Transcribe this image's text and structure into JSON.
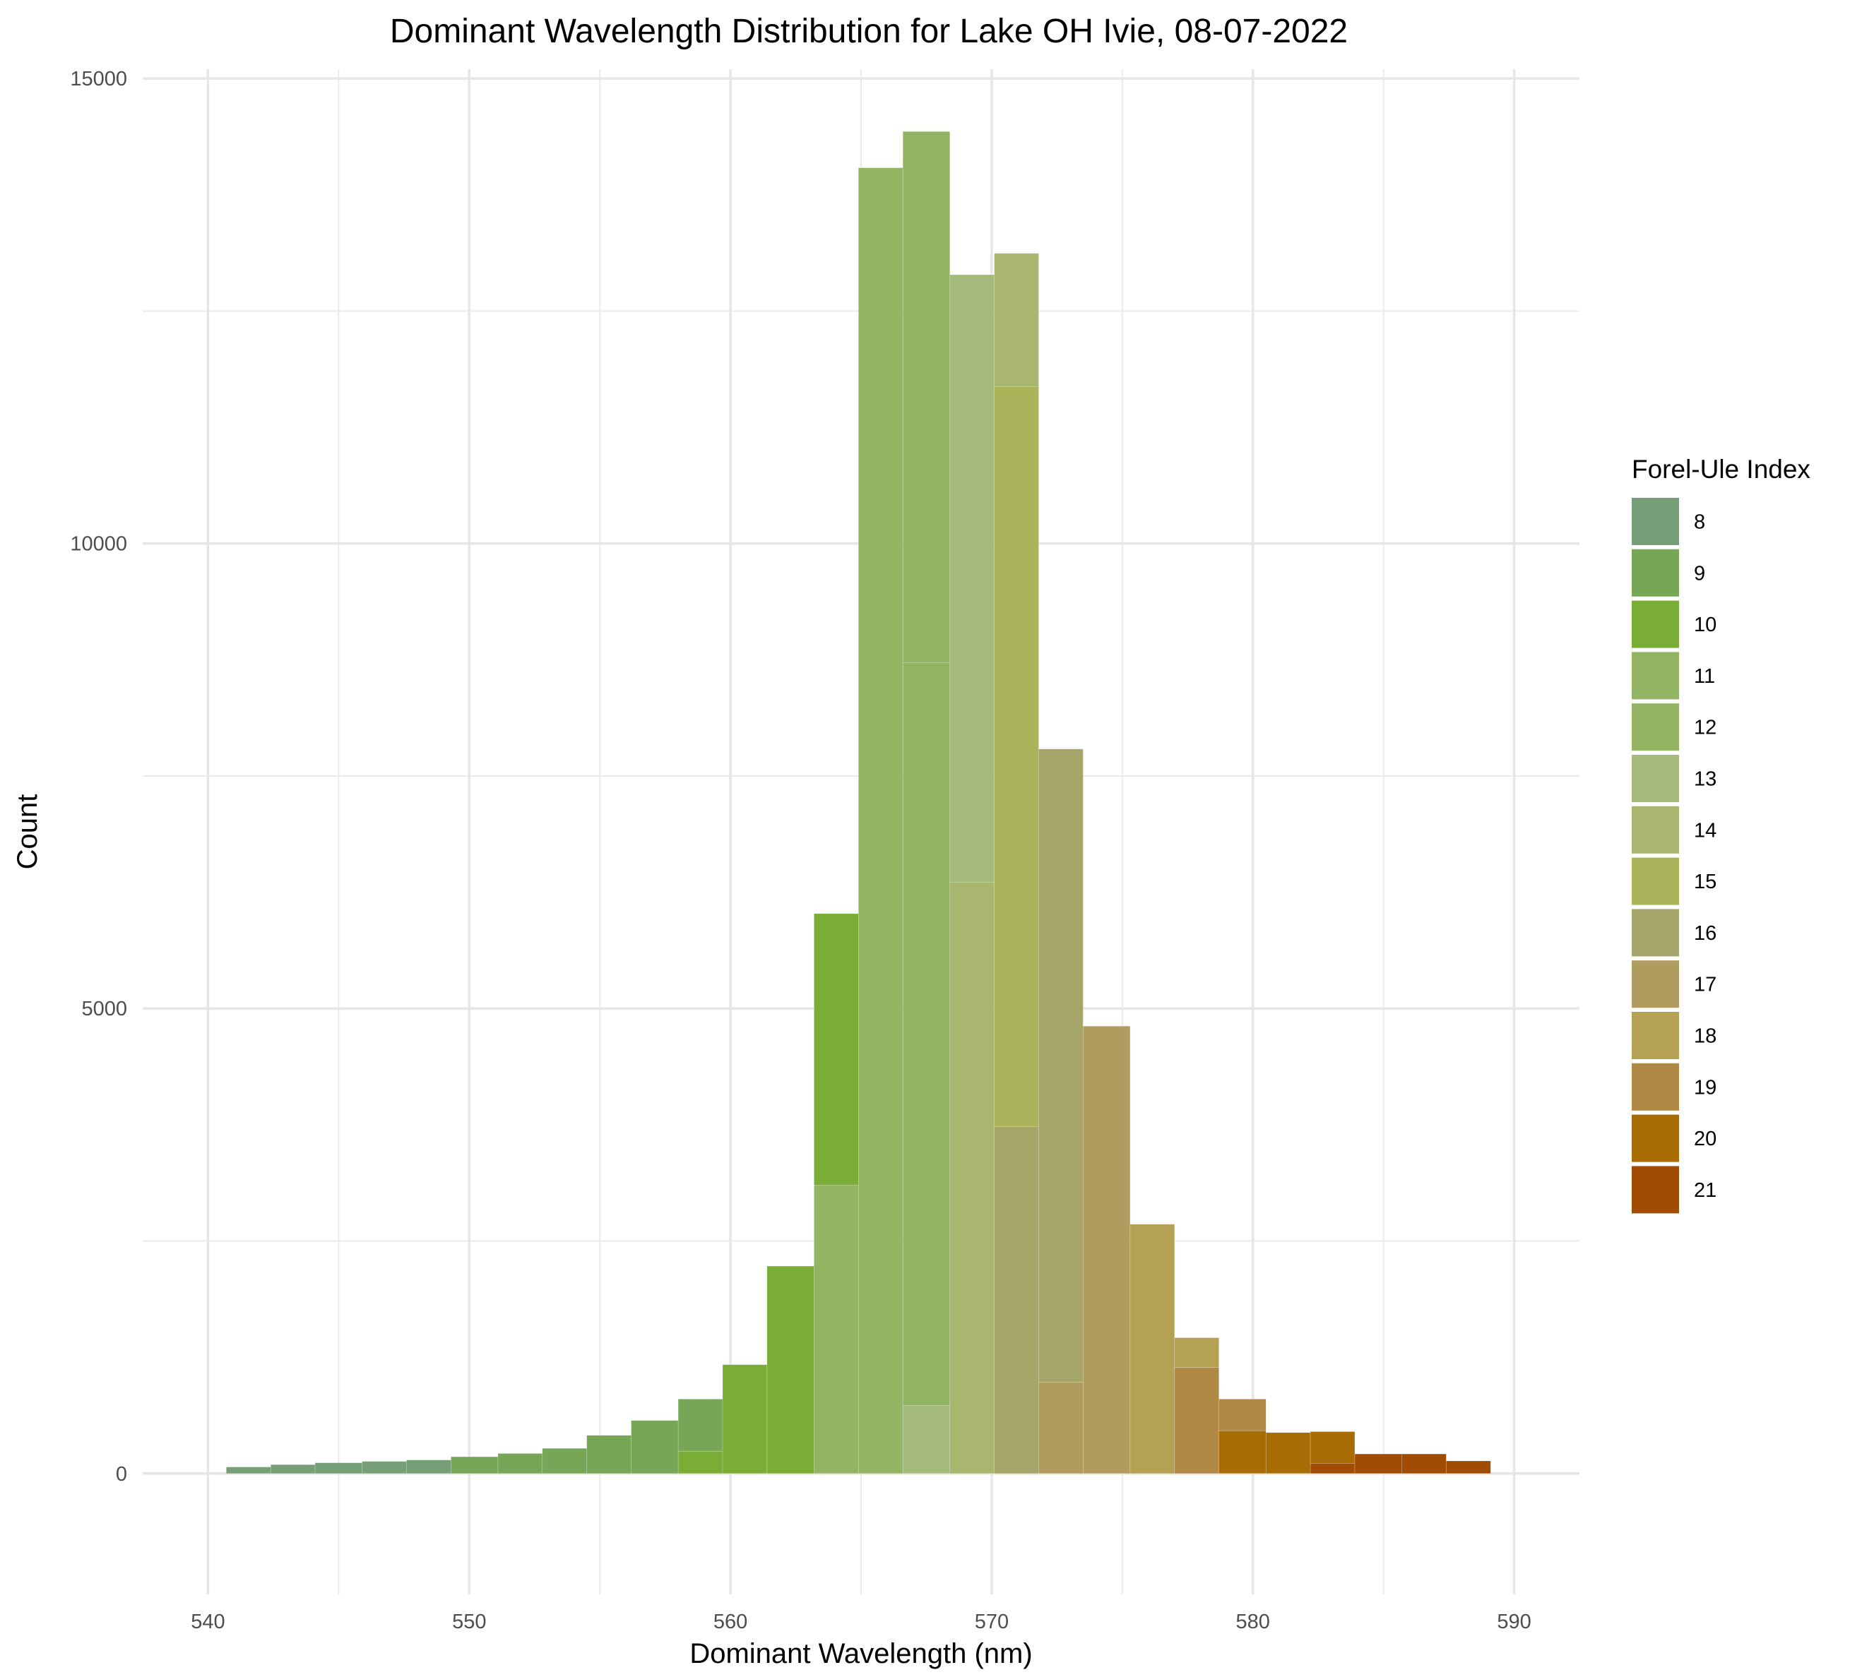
{
  "chart_data": {
    "type": "bar",
    "subtype": "stacked-histogram",
    "title": "Dominant Wavelength Distribution for Lake OH Ivie, 08-07-2022",
    "xlabel": "Dominant Wavelength (nm)",
    "ylabel": "Count",
    "xlim": [
      537.5,
      592.5
    ],
    "ylim": [
      -1300,
      15100
    ],
    "x_ticks": [
      540,
      550,
      560,
      570,
      580,
      590
    ],
    "y_ticks": [
      0,
      5000,
      10000,
      15000
    ],
    "grid": true,
    "legend": {
      "title": "Forel-Ule Index",
      "position": "right"
    },
    "bin_width": 1.725,
    "bins": [
      {
        "x0": 540.7,
        "x1": 542.4,
        "segments": [
          {
            "fui": "8",
            "count": 70
          }
        ]
      },
      {
        "x0": 542.4,
        "x1": 544.1,
        "segments": [
          {
            "fui": "8",
            "count": 95
          }
        ]
      },
      {
        "x0": 544.1,
        "x1": 545.9,
        "segments": [
          {
            "fui": "8",
            "count": 115
          }
        ]
      },
      {
        "x0": 545.9,
        "x1": 547.6,
        "segments": [
          {
            "fui": "8",
            "count": 130
          }
        ]
      },
      {
        "x0": 547.6,
        "x1": 549.3,
        "segments": [
          {
            "fui": "8",
            "count": 145
          }
        ]
      },
      {
        "x0": 549.3,
        "x1": 551.1,
        "segments": [
          {
            "fui": "9",
            "count": 180
          }
        ]
      },
      {
        "x0": 551.1,
        "x1": 552.8,
        "segments": [
          {
            "fui": "9",
            "count": 215
          }
        ]
      },
      {
        "x0": 552.8,
        "x1": 554.5,
        "segments": [
          {
            "fui": "9",
            "count": 270
          }
        ]
      },
      {
        "x0": 554.5,
        "x1": 556.2,
        "segments": [
          {
            "fui": "9",
            "count": 410
          }
        ]
      },
      {
        "x0": 556.2,
        "x1": 558.0,
        "segments": [
          {
            "fui": "9",
            "count": 570
          }
        ]
      },
      {
        "x0": 558.0,
        "x1": 559.7,
        "segments": [
          {
            "fui": "10",
            "count": 240
          },
          {
            "fui": "9",
            "count": 560
          }
        ]
      },
      {
        "x0": 559.7,
        "x1": 561.4,
        "segments": [
          {
            "fui": "10",
            "count": 1170
          }
        ]
      },
      {
        "x0": 561.4,
        "x1": 563.2,
        "segments": [
          {
            "fui": "10",
            "count": 2230
          }
        ]
      },
      {
        "x0": 563.2,
        "x1": 564.9,
        "segments": [
          {
            "fui": "11",
            "count": 3100
          },
          {
            "fui": "10",
            "count": 2920
          }
        ]
      },
      {
        "x0": 564.9,
        "x1": 566.6,
        "segments": [
          {
            "fui": "11",
            "count": 14040
          }
        ]
      },
      {
        "x0": 566.6,
        "x1": 568.4,
        "segments": [
          {
            "fui": "13",
            "count": 730
          },
          {
            "fui": "12",
            "count": 7990
          },
          {
            "fui": "11",
            "count": 5710
          }
        ]
      },
      {
        "x0": 568.4,
        "x1": 570.1,
        "segments": [
          {
            "fui": "14",
            "count": 6360
          },
          {
            "fui": "13",
            "count": 6530
          }
        ]
      },
      {
        "x0": 570.1,
        "x1": 571.8,
        "segments": [
          {
            "fui": "16",
            "count": 3730
          },
          {
            "fui": "15",
            "count": 7960
          },
          {
            "fui": "14",
            "count": 1430
          }
        ]
      },
      {
        "x0": 571.8,
        "x1": 573.5,
        "segments": [
          {
            "fui": "17",
            "count": 980
          },
          {
            "fui": "16",
            "count": 6810
          }
        ]
      },
      {
        "x0": 573.5,
        "x1": 575.3,
        "segments": [
          {
            "fui": "17",
            "count": 4810
          }
        ]
      },
      {
        "x0": 575.3,
        "x1": 577.0,
        "segments": [
          {
            "fui": "18",
            "count": 2680
          }
        ]
      },
      {
        "x0": 577.0,
        "x1": 578.7,
        "segments": [
          {
            "fui": "19",
            "count": 1140
          },
          {
            "fui": "18",
            "count": 320
          }
        ]
      },
      {
        "x0": 578.7,
        "x1": 580.5,
        "segments": [
          {
            "fui": "20",
            "count": 460
          },
          {
            "fui": "19",
            "count": 340
          }
        ]
      },
      {
        "x0": 580.5,
        "x1": 582.2,
        "segments": [
          {
            "fui": "20",
            "count": 440
          }
        ]
      },
      {
        "x0": 582.2,
        "x1": 583.9,
        "segments": [
          {
            "fui": "21",
            "count": 110
          },
          {
            "fui": "20",
            "count": 340
          }
        ]
      },
      {
        "x0": 583.9,
        "x1": 585.7,
        "segments": [
          {
            "fui": "21",
            "count": 210
          }
        ]
      },
      {
        "x0": 585.7,
        "x1": 587.4,
        "segments": [
          {
            "fui": "21",
            "count": 210
          }
        ]
      },
      {
        "x0": 587.4,
        "x1": 589.1,
        "segments": [
          {
            "fui": "21",
            "count": 135
          }
        ]
      }
    ],
    "fui_colors": {
      "8": "#779f77",
      "9": "#77a656",
      "10": "#7aad36",
      "11": "#93b462",
      "12": "#93b462",
      "13": "#a3ba7a",
      "14": "#a8b66f",
      "15": "#acb45b",
      "16": "#a7a66a",
      "17": "#b09c5e",
      "18": "#b4a154",
      "19": "#b08946",
      "20": "#a76c03",
      "21": "#a14c04"
    }
  }
}
